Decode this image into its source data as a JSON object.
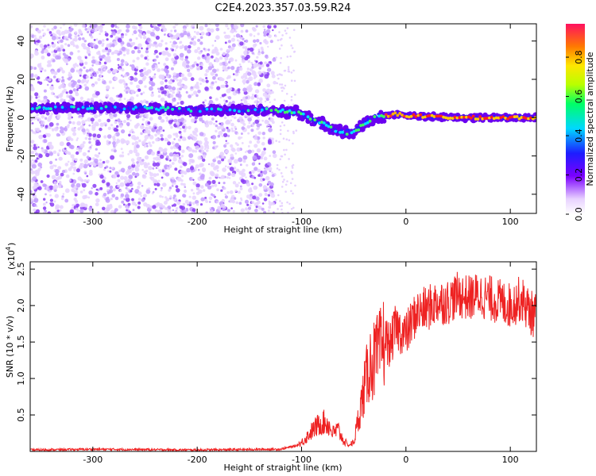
{
  "chart_data": [
    {
      "type": "heatmap",
      "title": "C2E4.2023.357.03.59.R24",
      "xlabel": "Height of straight line (km)",
      "ylabel": "Frequency (Hz)",
      "xlim": [
        -360,
        125
      ],
      "ylim": [
        -50,
        49
      ],
      "xticks": [
        -300,
        -200,
        -100,
        0,
        100
      ],
      "yticks": [
        -40,
        -20,
        0,
        20,
        40
      ],
      "colorbar": {
        "label": "Normalized spectral amplitude",
        "range": [
          0,
          0.97
        ],
        "ticks": [
          "0.0",
          "0.2",
          "0.4",
          "0.6",
          "0.8"
        ]
      },
      "ridge": {
        "x": [
          -355,
          -300,
          -250,
          -200,
          -150,
          -130,
          -110,
          -100,
          -90,
          -80,
          -70,
          -60,
          -50,
          -40,
          -30,
          -20,
          -10,
          0,
          50,
          120
        ],
        "y": [
          5,
          5,
          5,
          4,
          4,
          4,
          3,
          2,
          -1,
          -3,
          -6,
          -8,
          -8,
          -3,
          0,
          1,
          2,
          1,
          0,
          0
        ]
      }
    },
    {
      "type": "line",
      "series_color": "#ee2222",
      "xlabel": "Height of straight line (km)",
      "ylabel": "SNR (10 * v/v)",
      "multiplier_label": "(x10",
      "multiplier_exp": "4",
      "xlim": [
        -360,
        125
      ],
      "ylim": [
        0,
        2.6
      ],
      "xticks": [
        -300,
        -200,
        -100,
        0,
        100
      ],
      "yticks": [
        "0.5",
        "1.0",
        "1.5",
        "2.0",
        "2.5"
      ],
      "x": [
        -360,
        -300,
        -200,
        -120,
        -105,
        -100,
        -95,
        -90,
        -85,
        -80,
        -75,
        -70,
        -65,
        -60,
        -55,
        -50,
        -45,
        -40,
        -35,
        -30,
        -25,
        -20,
        -15,
        -10,
        -5,
        0,
        10,
        20,
        30,
        40,
        50,
        60,
        70,
        80,
        90,
        100,
        110,
        120,
        125
      ],
      "y": [
        0.02,
        0.03,
        0.02,
        0.03,
        0.08,
        0.12,
        0.2,
        0.28,
        0.35,
        0.4,
        0.38,
        0.25,
        0.3,
        0.15,
        0.08,
        0.12,
        0.5,
        0.85,
        1.2,
        1.25,
        1.35,
        1.55,
        1.45,
        1.7,
        1.65,
        1.6,
        1.9,
        1.95,
        2.05,
        2.05,
        2.15,
        2.1,
        2.15,
        2.1,
        2.05,
        2.0,
        2.1,
        1.9,
        1.85
      ]
    }
  ]
}
